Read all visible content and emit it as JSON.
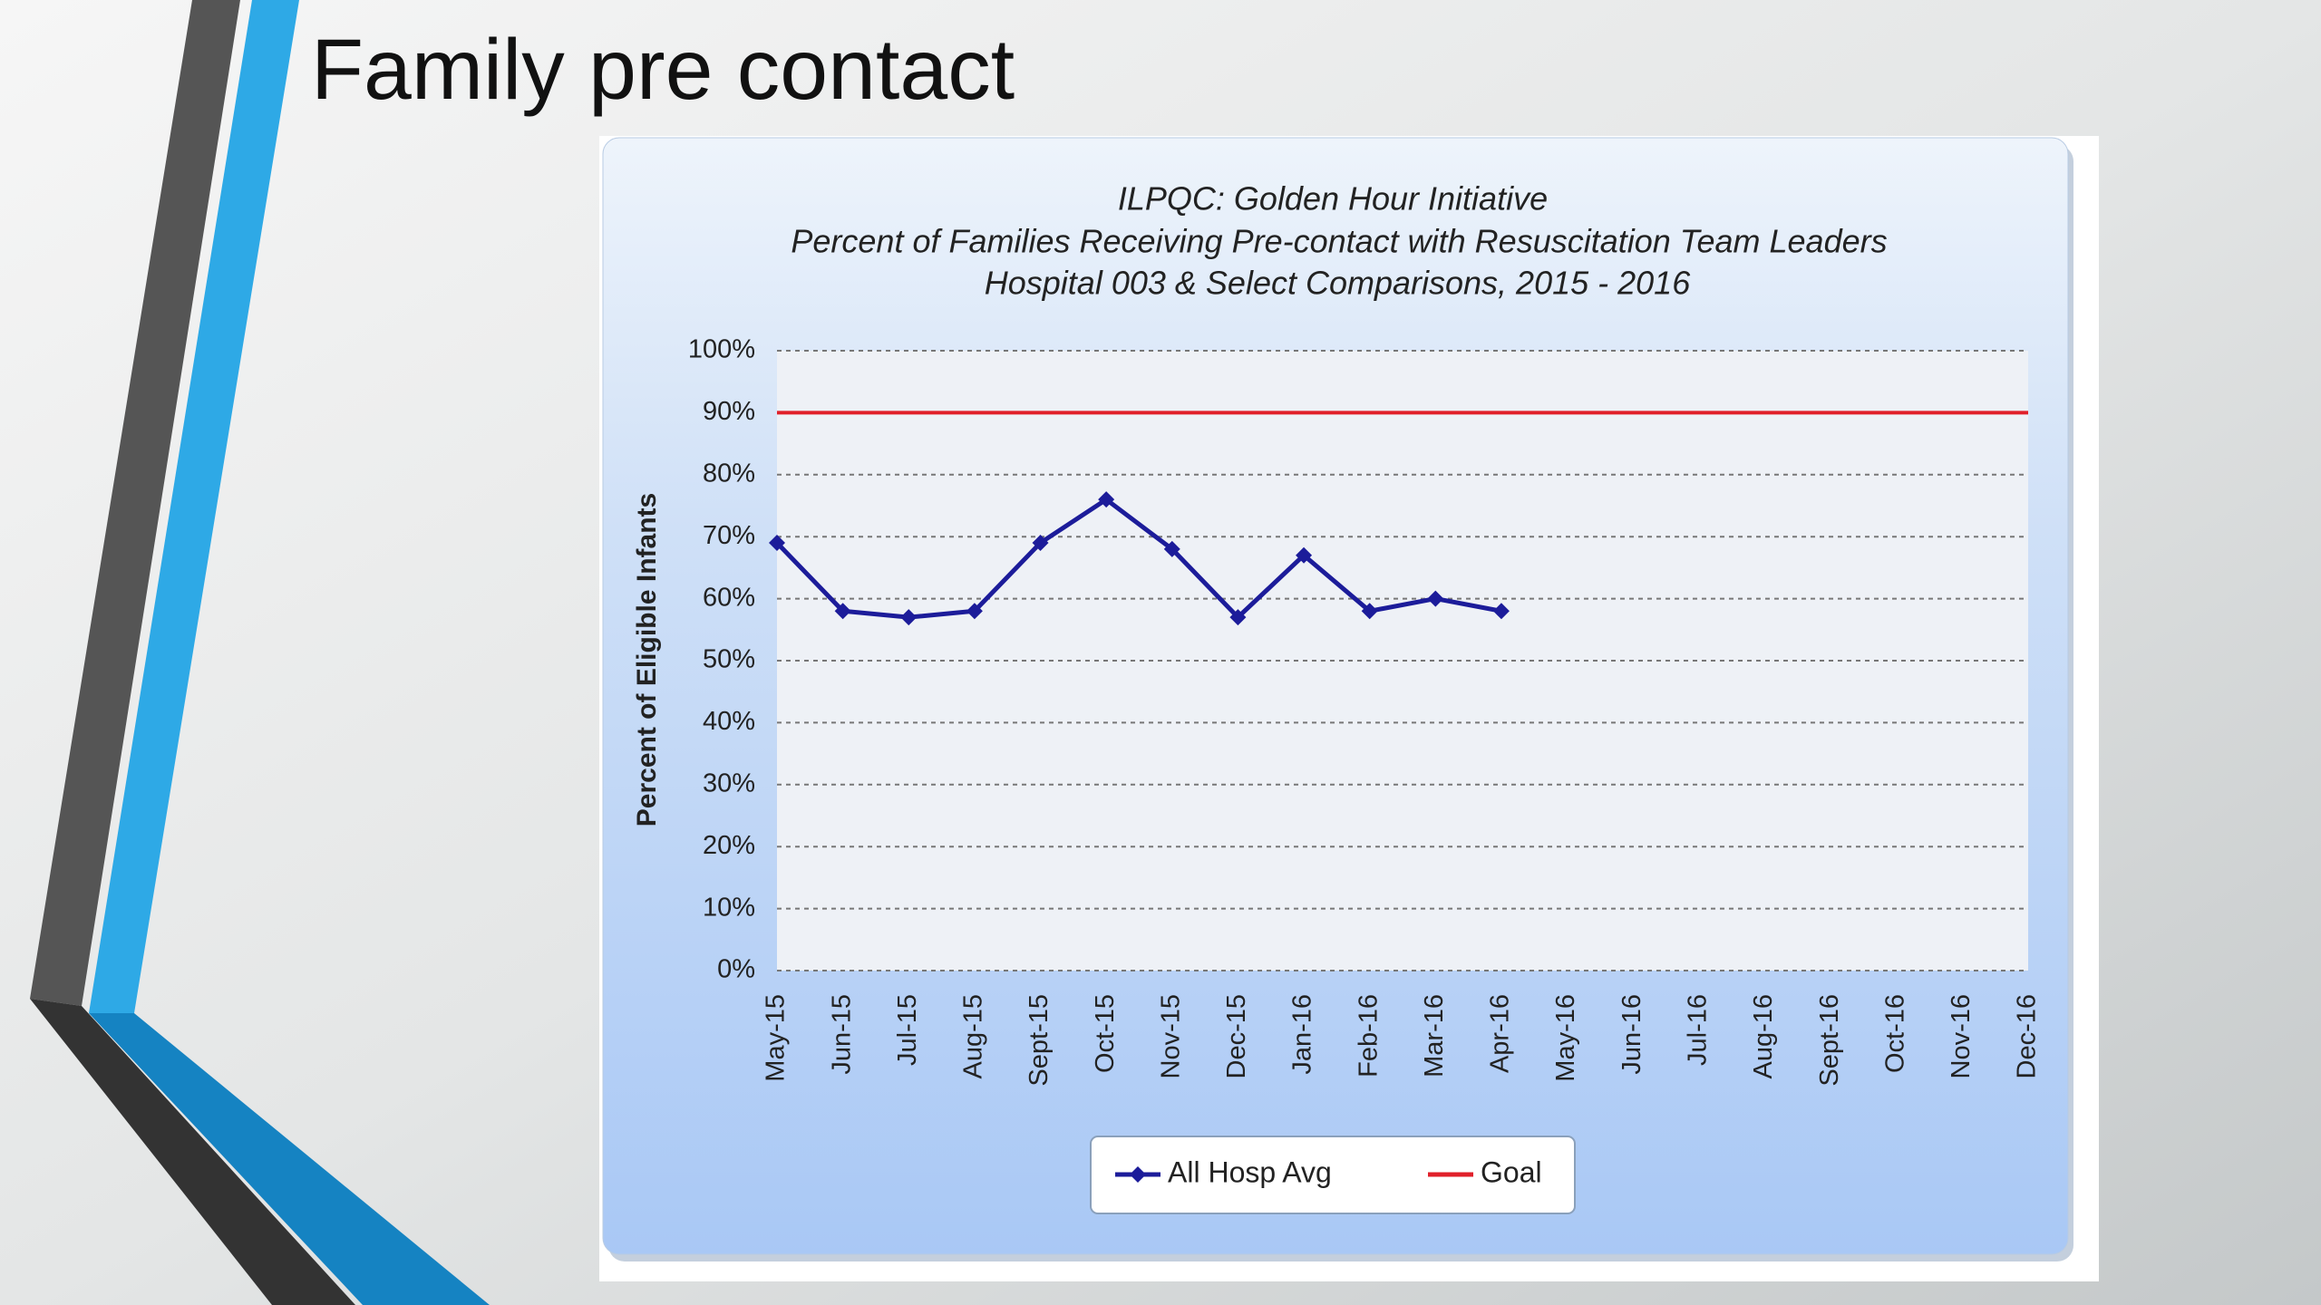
{
  "slide": {
    "title": "Family pre contact"
  },
  "chart_data": {
    "type": "line",
    "title": "ILPQC: Golden Hour Initiative",
    "subtitle": [
      "Percent of Families Receiving Pre-contact with Resuscitation Team Leaders",
      "Hospital 003 & Select Comparisons, 2015 - 2016"
    ],
    "y_label": "Percent of Eligible Infants",
    "categories": [
      "May-15",
      "Jun-15",
      "Jul-15",
      "Aug-15",
      "Sept-15",
      "Oct-15",
      "Nov-15",
      "Dec-15",
      "Jan-16",
      "Feb-16",
      "Mar-16",
      "Apr-16",
      "May-16",
      "Jun-16",
      "Jul-16",
      "Aug-16",
      "Sept-16",
      "Oct-16",
      "Nov-16",
      "Dec-16"
    ],
    "series": [
      {
        "name": "All Hosp Avg",
        "color": "#1c1c9a",
        "marker": true,
        "values": [
          69,
          58,
          57,
          58,
          69,
          76,
          68,
          57,
          67,
          58,
          60,
          58,
          null,
          null,
          null,
          null,
          null,
          null,
          null,
          null
        ]
      },
      {
        "name": "Goal",
        "color": "#e0202a",
        "marker": false,
        "values": [
          90,
          90,
          90,
          90,
          90,
          90,
          90,
          90,
          90,
          90,
          90,
          90,
          90,
          90,
          90,
          90,
          90,
          90,
          90,
          90
        ]
      }
    ],
    "ylim": [
      0,
      100
    ],
    "yticks": [
      {
        "value": 0,
        "label": "0%"
      },
      {
        "value": 10,
        "label": "10%"
      },
      {
        "value": 20,
        "label": "20%"
      },
      {
        "value": 30,
        "label": "30%"
      },
      {
        "value": 40,
        "label": "40%"
      },
      {
        "value": 50,
        "label": "50%"
      },
      {
        "value": 60,
        "label": "60%"
      },
      {
        "value": 70,
        "label": "70%"
      },
      {
        "value": 80,
        "label": "80%"
      },
      {
        "value": 90,
        "label": "90%"
      },
      {
        "value": 100,
        "label": "100%"
      }
    ],
    "grid": true,
    "legend": "bottom"
  }
}
